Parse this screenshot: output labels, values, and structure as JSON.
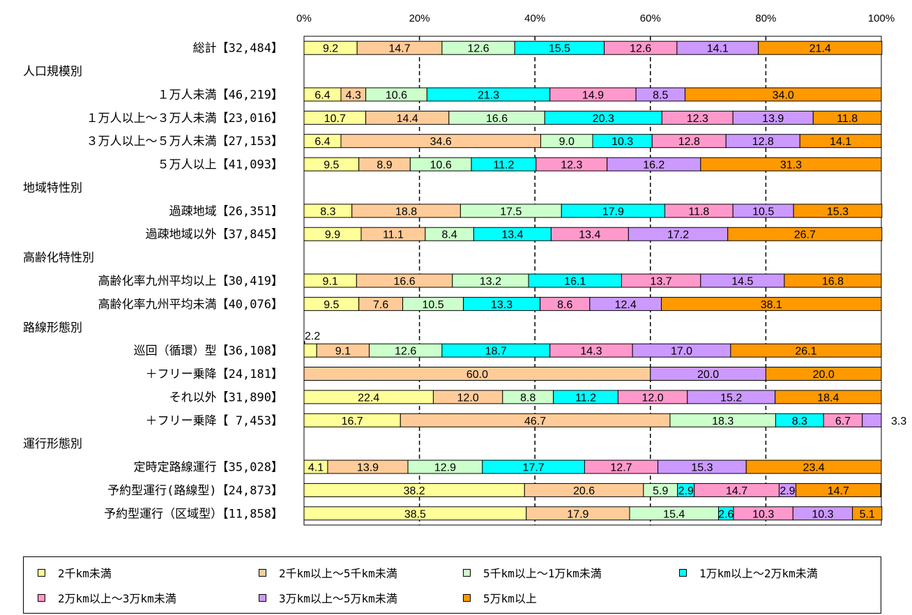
{
  "chart_data": {
    "type": "bar",
    "stacked": true,
    "orientation": "horizontal",
    "percent_axis": true,
    "x_ticks": [
      "0%",
      "20%",
      "40%",
      "60%",
      "80%",
      "100%"
    ],
    "xlim": [
      0,
      100
    ],
    "grid": "vertical dashed",
    "legend_position": "bottom",
    "series": [
      {
        "name": "2千km未満",
        "color": "#ffff99"
      },
      {
        "name": "2千km以上～5千km未満",
        "color": "#ffcc99"
      },
      {
        "name": "5千km以上～1万km未満",
        "color": "#ccffcc"
      },
      {
        "name": "1万km以上～2万km未満",
        "color": "#00ffff"
      },
      {
        "name": "2万km以上～3万km未満",
        "color": "#ff99cc"
      },
      {
        "name": "3万km以上～5万km未満",
        "color": "#cc99ff"
      },
      {
        "name": "5万km以上",
        "color": "#ff9900"
      }
    ],
    "rows": [
      {
        "label": "総計",
        "count": "【32,484】",
        "values": [
          9.2,
          14.7,
          12.6,
          15.5,
          12.6,
          14.1,
          21.4
        ],
        "labels": [
          "9.2",
          "14.7",
          "12.6",
          "15.5",
          "12.6",
          "14.1",
          "21.4"
        ]
      },
      {
        "header": "人口規模別"
      },
      {
        "label": "１万人未満",
        "count": "【46,219】",
        "values": [
          6.4,
          4.3,
          10.6,
          21.3,
          14.9,
          8.5,
          34.0
        ],
        "labels": [
          "6.4",
          "4.3",
          "10.6",
          "21.3",
          "14.9",
          "8.5",
          "34.0"
        ]
      },
      {
        "label": "１万人以上～３万人未満",
        "count": "【23,016】",
        "values": [
          10.7,
          14.4,
          16.6,
          20.3,
          12.3,
          13.9,
          11.8
        ],
        "labels": [
          "10.7",
          "14.4",
          "16.6",
          "20.3",
          "12.3",
          "13.9",
          "11.8"
        ]
      },
      {
        "label": "３万人以上～５万人未満",
        "count": "【27,153】",
        "values": [
          6.4,
          34.6,
          9.0,
          10.3,
          12.8,
          12.8,
          14.1
        ],
        "labels": [
          "6.4",
          "34.6",
          "9.0",
          "10.3",
          "12.8",
          "12.8",
          "14.1"
        ]
      },
      {
        "label": "５万人以上",
        "count": "【41,093】",
        "values": [
          9.5,
          8.9,
          10.6,
          11.2,
          12.3,
          16.2,
          31.3
        ],
        "labels": [
          "9.5",
          "8.9",
          "10.6",
          "11.2",
          "12.3",
          "16.2",
          "31.3"
        ]
      },
      {
        "header": "地域特性別"
      },
      {
        "label": "過疎地域",
        "count": "【26,351】",
        "values": [
          8.3,
          18.8,
          17.5,
          17.9,
          11.8,
          10.5,
          15.3
        ],
        "labels": [
          "8.3",
          "18.8",
          "17.5",
          "17.9",
          "11.8",
          "10.5",
          "15.3"
        ]
      },
      {
        "label": "過疎地域以外",
        "count": "【37,845】",
        "values": [
          9.9,
          11.1,
          8.4,
          13.4,
          13.4,
          17.2,
          26.7
        ],
        "labels": [
          "9.9",
          "11.1",
          "8.4",
          "13.4",
          "13.4",
          "17.2",
          "26.7"
        ]
      },
      {
        "header": "高齢化特性別"
      },
      {
        "label": "高齢化率九州平均以上",
        "count": "【30,419】",
        "values": [
          9.1,
          16.6,
          13.2,
          16.1,
          13.7,
          14.5,
          16.8
        ],
        "labels": [
          "9.1",
          "16.6",
          "13.2",
          "16.1",
          "13.7",
          "14.5",
          "16.8"
        ]
      },
      {
        "label": "高齢化率九州平均未満",
        "count": "【40,076】",
        "values": [
          9.5,
          7.6,
          10.5,
          13.3,
          8.6,
          12.4,
          38.1
        ],
        "labels": [
          "9.5",
          "7.6",
          "10.5",
          "13.3",
          "8.6",
          "12.4",
          "38.1"
        ]
      },
      {
        "header": "路線形態別"
      },
      {
        "label": "巡回（循環）型",
        "count": "【36,108】",
        "values": [
          2.2,
          9.1,
          12.6,
          18.7,
          14.3,
          17.0,
          26.1
        ],
        "labels": [
          "2.2",
          "9.1",
          "12.6",
          "18.7",
          "14.3",
          "17.0",
          "26.1"
        ],
        "outside_above": [
          0
        ]
      },
      {
        "label": "＋フリー乗降",
        "count": "【24,181】",
        "values": [
          0,
          60.0,
          0,
          0,
          0,
          20.0,
          20.0
        ],
        "labels": [
          "",
          "60.0",
          "",
          "",
          "",
          "20.0",
          "20.0"
        ]
      },
      {
        "label": "それ以外",
        "count": "【31,890】",
        "values": [
          22.4,
          12.0,
          8.8,
          11.2,
          12.0,
          15.2,
          18.4
        ],
        "labels": [
          "22.4",
          "12.0",
          "8.8",
          "11.2",
          "12.0",
          "15.2",
          "18.4"
        ]
      },
      {
        "label": "＋フリー乗降",
        "count": "【 7,453】",
        "values": [
          16.7,
          46.7,
          18.3,
          8.3,
          6.7,
          3.3,
          0
        ],
        "labels": [
          "16.7",
          "46.7",
          "18.3",
          "8.3",
          "6.7",
          "3.3",
          ""
        ],
        "outside_right": [
          5
        ]
      },
      {
        "header": "運行形態別"
      },
      {
        "label": "定時定路線運行",
        "count": "【35,028】",
        "values": [
          4.1,
          13.9,
          12.9,
          17.7,
          12.7,
          15.3,
          23.4
        ],
        "labels": [
          "4.1",
          "13.9",
          "12.9",
          "17.7",
          "12.7",
          "15.3",
          "23.4"
        ]
      },
      {
        "label": "予約型運行(路線型)",
        "count": "【24,873】",
        "values": [
          38.2,
          20.6,
          5.9,
          2.9,
          14.7,
          2.9,
          14.7
        ],
        "labels": [
          "38.2",
          "20.6",
          "5.9",
          "2.9",
          "14.7",
          "2.9",
          "14.7"
        ]
      },
      {
        "label": "予約型運行（区域型）",
        "count": "【11,858】",
        "values": [
          38.5,
          17.9,
          15.4,
          2.6,
          10.3,
          10.3,
          5.1
        ],
        "labels": [
          "38.5",
          "17.9",
          "15.4",
          "2.6",
          "10.3",
          "10.3",
          "5.1"
        ]
      }
    ]
  }
}
